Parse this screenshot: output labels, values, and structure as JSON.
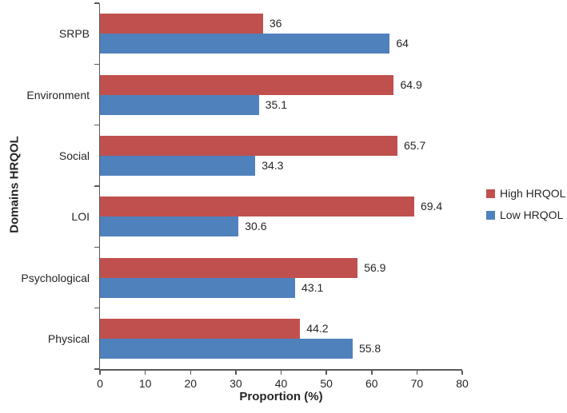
{
  "figure": {
    "background_color": "#ffffff",
    "axis_color": "#595959",
    "text_color": "#262626"
  },
  "chart_data": {
    "type": "bar",
    "orientation": "horizontal",
    "title": "",
    "xlabel": "Proportion (%)",
    "ylabel": "Domains HRQOL",
    "xlim": [
      0,
      80
    ],
    "xticks": [
      0,
      10,
      20,
      30,
      40,
      50,
      60,
      70,
      80
    ],
    "grid": false,
    "legend_position": "right",
    "categories": [
      "SRPB",
      "Environment",
      "Social",
      "LOI",
      "Psychological",
      "Physical"
    ],
    "series": [
      {
        "name": "High HRQOL",
        "color": "#C0504D",
        "values": [
          36,
          64.9,
          65.7,
          69.4,
          56.9,
          44.2
        ],
        "labels": [
          "36",
          "64.9",
          "65.7",
          "69.4",
          "56.9",
          "44.2"
        ]
      },
      {
        "name": "Low HRQOL",
        "color": "#4F81BD",
        "values": [
          64,
          35.1,
          34.3,
          30.6,
          43.1,
          55.8
        ],
        "labels": [
          "64",
          "35.1",
          "34.3",
          "30.6",
          "43.1",
          "55.8"
        ]
      }
    ]
  }
}
